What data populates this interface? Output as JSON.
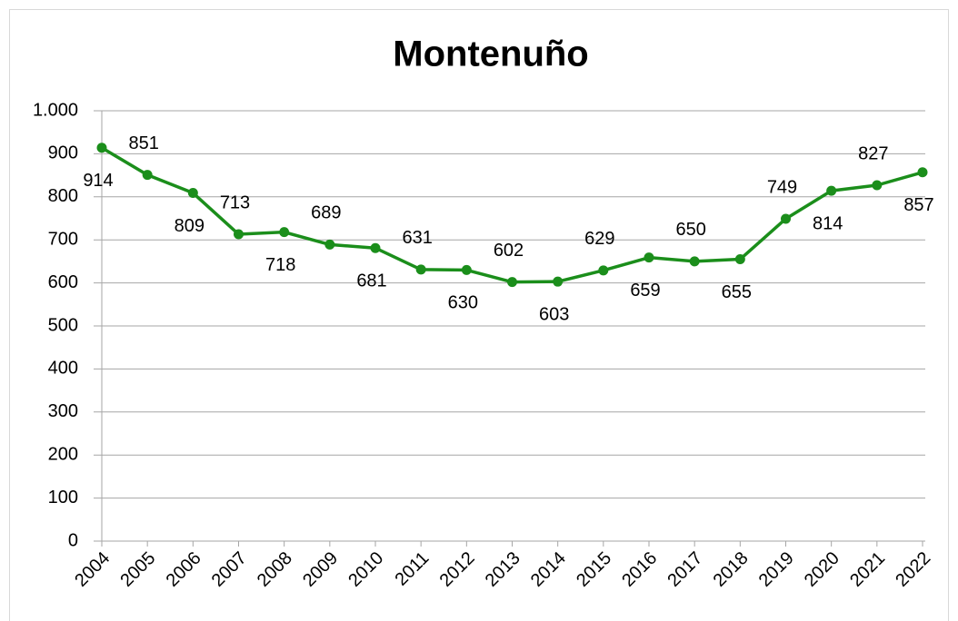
{
  "chart_data": {
    "type": "line",
    "title": "Montenuño",
    "categories": [
      "2004",
      "2005",
      "2006",
      "2007",
      "2008",
      "2009",
      "2010",
      "2011",
      "2012",
      "2013",
      "2014",
      "2015",
      "2016",
      "2017",
      "2018",
      "2019",
      "2020",
      "2021",
      "2022"
    ],
    "values": [
      914,
      851,
      809,
      713,
      718,
      689,
      681,
      631,
      630,
      602,
      603,
      629,
      659,
      650,
      655,
      749,
      814,
      827,
      857
    ],
    "color": "#1b8e1b",
    "ylim": [
      0,
      1000
    ],
    "yticks": [
      0,
      100,
      200,
      300,
      400,
      500,
      600,
      700,
      800,
      900,
      {
        "value": 1000,
        "label": "1.000"
      }
    ],
    "grid": true
  }
}
